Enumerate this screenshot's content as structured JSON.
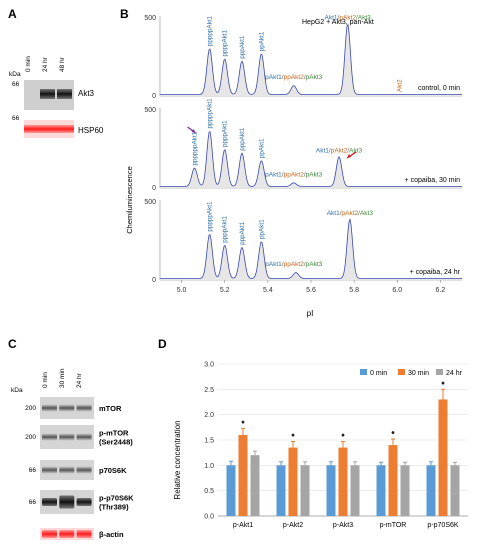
{
  "panels": {
    "A": {
      "letter": "A",
      "kda_label": "kDa",
      "lanes": [
        "0 min",
        "24 hr",
        "48 hr"
      ],
      "marker_top": "66",
      "marker_bottom": "66",
      "band_labels": [
        "Akt3",
        "HSP60"
      ]
    },
    "B": {
      "letter": "B",
      "header": "HepG2 + Akt3, pan-Akt",
      "ylabel": "Chemiluminescence",
      "xlabel": "pI",
      "x_ticks": [
        "5.0",
        "5.2",
        "5.4",
        "5.6",
        "5.8",
        "6.0",
        "6.2"
      ],
      "y_ticks": [
        "0",
        "500"
      ],
      "traces": [
        {
          "condition": "control, 0 min",
          "peak_labels": [
            "pppppAkt1",
            "ppppAkt1",
            "pppAkt1",
            "ppAkt1"
          ],
          "group_label": {
            "akt1": "pAkt1",
            "sep1": "/",
            "akt2": "ppAkt2",
            "sep2": "/",
            "akt3": "pAkt3"
          },
          "main_label": {
            "akt1": "Akt1",
            "sep1": "/",
            "akt2": "pAkt2",
            "sep2": "/",
            "akt3": "Akt3"
          },
          "extra_label": "Akt2"
        },
        {
          "condition": "+ copaiba, 30 min",
          "peak_labels": [
            "ppppppAkt1",
            "pppppAkt1",
            "ppppAkt1",
            "pppAkt1",
            "ppAkt1"
          ],
          "group_label": {
            "akt1": "pAkt1",
            "sep1": "/",
            "akt2": "ppAkt2",
            "sep2": "/",
            "akt3": "pAkt3"
          },
          "main_label": {
            "akt1": "Akt1",
            "sep1": "/",
            "akt2": "pAkt2",
            "sep2": "/",
            "akt3": "Akt3"
          }
        },
        {
          "condition": "+ copaiba, 24 hr",
          "peak_labels": [
            "pppppAkt1",
            "ppppAkt1",
            "pppAkt1",
            "ppAkt1"
          ],
          "group_label": {
            "akt1": "pAkt1",
            "sep1": "/",
            "akt2": "ppAkt2",
            "sep2": "/",
            "akt3": "pAkt3"
          },
          "main_label": {
            "akt1": "Akt1",
            "sep1": "/",
            "akt2": "pAkt2",
            "sep2": "/",
            "akt3": "Akt3"
          }
        }
      ]
    },
    "C": {
      "letter": "C",
      "kda_label": "kDa",
      "lanes": [
        "0 min",
        "30 min",
        "24 hr"
      ],
      "rows": [
        {
          "marker": "200",
          "label": "mTOR"
        },
        {
          "marker": "200",
          "label": "p-mTOR\n(Ser2448)"
        },
        {
          "marker": "66",
          "label": "p70S6K"
        },
        {
          "marker": "66",
          "label": "p-p70S6K\n(Thr389)"
        },
        {
          "marker": "",
          "label": "β-actin"
        }
      ],
      "row_label_lines": [
        [
          "mTOR"
        ],
        [
          "p-mTOR",
          "(Ser2448)"
        ],
        [
          "p70S6K"
        ],
        [
          "p-p70S6K",
          "(Thr389)"
        ],
        [
          "β-actin"
        ]
      ]
    },
    "D": {
      "letter": "D"
    }
  },
  "chart_data": {
    "type": "bar",
    "title": "",
    "xlabel": "",
    "ylabel": "Relative concentration",
    "ylim": [
      0,
      3.0
    ],
    "y_ticks": [
      "0.0",
      "0.5",
      "1.0",
      "1.5",
      "2.0",
      "2.5",
      "3.0"
    ],
    "categories": [
      "p-Akt1",
      "p-Akt2",
      "p-Akt3",
      "p-mTOR",
      "p-p70S6K"
    ],
    "series": [
      {
        "name": "0  min",
        "color": "#5b9bd5",
        "values": [
          1.0,
          1.0,
          1.0,
          1.0,
          1.0
        ],
        "errors": [
          0.08,
          0.07,
          0.07,
          0.06,
          0.07
        ]
      },
      {
        "name": "30 min",
        "color": "#ed7d31",
        "values": [
          1.6,
          1.35,
          1.35,
          1.4,
          2.3
        ],
        "errors": [
          0.13,
          0.12,
          0.12,
          0.12,
          0.2
        ]
      },
      {
        "name": "24 hr",
        "color": "#a5a5a5",
        "values": [
          1.2,
          1.0,
          1.0,
          1.0,
          1.0
        ],
        "errors": [
          0.08,
          0.07,
          0.07,
          0.06,
          0.06
        ]
      }
    ],
    "significance_marker": "•",
    "legend_position": "top"
  }
}
